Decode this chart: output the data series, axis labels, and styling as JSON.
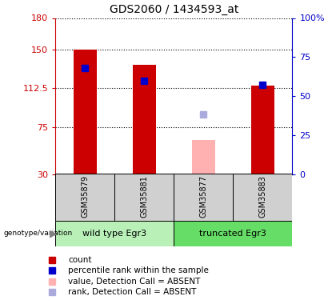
{
  "title": "GDS2060 / 1434593_at",
  "samples": [
    "GSM35879",
    "GSM35881",
    "GSM35877",
    "GSM35883"
  ],
  "bar_values": [
    150,
    135,
    null,
    115
  ],
  "bar_colors": [
    "#cc0000",
    "#cc0000",
    null,
    "#cc0000"
  ],
  "absent_bar_values": [
    null,
    null,
    63,
    null
  ],
  "absent_bar_color": "#ffb0b0",
  "rank_values": [
    68,
    60,
    null,
    57
  ],
  "rank_absent_values": [
    null,
    null,
    38,
    null
  ],
  "rank_color": "#0000cc",
  "rank_absent_color": "#aaaadd",
  "ylim_left": [
    30,
    180
  ],
  "ylim_right": [
    0,
    100
  ],
  "yticks_left": [
    30,
    75,
    112.5,
    150,
    180
  ],
  "yticks_left_labels": [
    "30",
    "75",
    "112.5",
    "150",
    "180"
  ],
  "yticks_right": [
    0,
    25,
    50,
    75,
    100
  ],
  "yticks_right_labels": [
    "0",
    "25",
    "50",
    "75",
    "100%"
  ],
  "group1_label": "wild type Egr3",
  "group2_label": "truncated Egr3",
  "group_label_prefix": "genotype/variation",
  "group1_bg": "#b8f0b8",
  "group2_bg": "#66dd66",
  "sample_bg": "#d0d0d0",
  "plot_bg": "#ffffff",
  "legend_items": [
    {
      "label": "count",
      "color": "#cc0000"
    },
    {
      "label": "percentile rank within the sample",
      "color": "#0000cc"
    },
    {
      "label": "value, Detection Call = ABSENT",
      "color": "#ffb0b0"
    },
    {
      "label": "rank, Detection Call = ABSENT",
      "color": "#aaaadd"
    }
  ],
  "bar_width": 0.4,
  "rank_marker_size": 6,
  "left_axis_color": "#cc0000",
  "right_axis_color": "#0000cc",
  "title_fontsize": 10,
  "tick_fontsize": 8,
  "sample_fontsize": 7,
  "group_fontsize": 8,
  "legend_fontsize": 7.5
}
